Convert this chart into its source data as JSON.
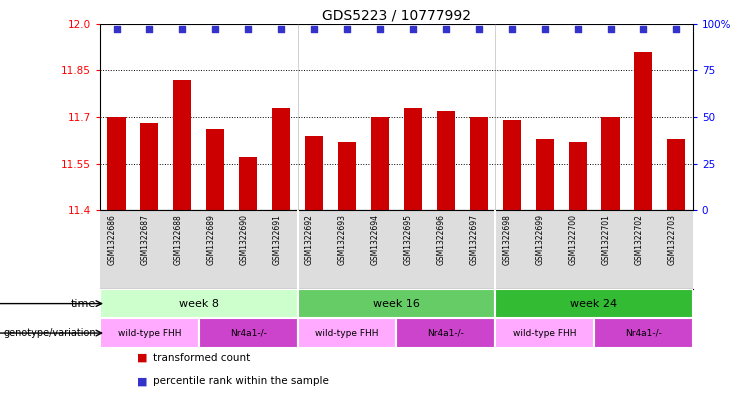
{
  "title": "GDS5223 / 10777992",
  "samples": [
    "GSM1322686",
    "GSM1322687",
    "GSM1322688",
    "GSM1322689",
    "GSM1322690",
    "GSM1322691",
    "GSM1322692",
    "GSM1322693",
    "GSM1322694",
    "GSM1322695",
    "GSM1322696",
    "GSM1322697",
    "GSM1322698",
    "GSM1322699",
    "GSM1322700",
    "GSM1322701",
    "GSM1322702",
    "GSM1322703"
  ],
  "bar_values": [
    11.7,
    11.68,
    11.82,
    11.66,
    11.57,
    11.73,
    11.64,
    11.62,
    11.7,
    11.73,
    11.72,
    11.7,
    11.69,
    11.63,
    11.62,
    11.7,
    11.91,
    11.63
  ],
  "bar_color": "#cc0000",
  "percentile_color": "#3333cc",
  "ylim_left": [
    11.4,
    12.0
  ],
  "ylim_right": [
    0,
    100
  ],
  "yticks_left": [
    11.4,
    11.55,
    11.7,
    11.85,
    12.0
  ],
  "yticks_right": [
    0,
    25,
    50,
    75,
    100
  ],
  "ytick_labels_right": [
    "0",
    "25",
    "50",
    "75",
    "100%"
  ],
  "dotted_lines": [
    11.55,
    11.7,
    11.85
  ],
  "week8_color": "#ccffcc",
  "week16_color": "#66dd66",
  "week24_color": "#33bb33",
  "wt_color": "#ee88ee",
  "nr_color": "#cc22cc",
  "time_groups": [
    {
      "label": "week 8",
      "start": 0,
      "end": 6
    },
    {
      "label": "week 16",
      "start": 6,
      "end": 12
    },
    {
      "label": "week 24",
      "start": 12,
      "end": 18
    }
  ],
  "time_colors": [
    "#ccffcc",
    "#66cc66",
    "#33bb33"
  ],
  "geno_groups": [
    {
      "label": "wild-type FHH",
      "start": 0,
      "end": 3
    },
    {
      "label": "Nr4a1-/-",
      "start": 3,
      "end": 6
    },
    {
      "label": "wild-type FHH",
      "start": 6,
      "end": 9
    },
    {
      "label": "Nr4a1-/-",
      "start": 9,
      "end": 12
    },
    {
      "label": "wild-type FHH",
      "start": 12,
      "end": 15
    },
    {
      "label": "Nr4a1-/-",
      "start": 15,
      "end": 18
    }
  ],
  "geno_colors": [
    "#ffaaff",
    "#cc44cc",
    "#ffaaff",
    "#cc44cc",
    "#ffaaff",
    "#cc44cc"
  ],
  "n_samples": 18,
  "legend_items": [
    {
      "color": "#cc0000",
      "label": "transformed count"
    },
    {
      "color": "#3333cc",
      "label": "percentile rank within the sample"
    }
  ],
  "bg_color": "#ffffff",
  "tick_area_color": "#dddddd"
}
